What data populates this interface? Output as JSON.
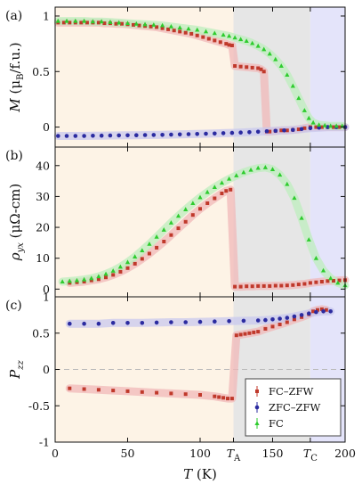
{
  "figure": {
    "panel_labels": [
      "(a)",
      "(b)",
      "(c)"
    ],
    "x_axis_label": "T (K)",
    "x_tick_labels": [
      "0",
      "50",
      "100",
      "T_A",
      "150",
      "T_C",
      "200"
    ],
    "special_x": [
      {
        "name": "T_A",
        "x": 123
      },
      {
        "name": "T_C",
        "x": 176
      }
    ],
    "region_colors": {
      "low": "#fdf3e6",
      "middle": "#e6e6e6",
      "high": "#e4e4fa"
    },
    "series_styles": [
      {
        "key": "fczfw",
        "legend_label": "FC–ZFW",
        "color": "#c0392b",
        "band": "#f0b8b8",
        "marker": "square"
      },
      {
        "key": "zfczfw",
        "legend_label": "ZFC–ZFW",
        "color": "#2b2ba0",
        "band": "#c8c8ee",
        "marker": "circle"
      },
      {
        "key": "fc",
        "legend_label": "FC",
        "color": "#2ecc2e",
        "band": "#bdeebd",
        "marker": "triangle"
      }
    ]
  },
  "chart_data": [
    {
      "type": "scatter",
      "panel": "(a)",
      "ylabel": "M (μB/f.u.)",
      "xlim": [
        0,
        200
      ],
      "ylim": [
        -0.18,
        1.08
      ],
      "yticks": [
        0,
        0.5,
        1
      ],
      "ytick_labels": [
        "0",
        "0.5",
        "1"
      ],
      "series": [
        {
          "key": "fczfw",
          "x": [
            2,
            6,
            10,
            14,
            18,
            22,
            26,
            30,
            34,
            38,
            42,
            46,
            50,
            54,
            58,
            62,
            66,
            70,
            74,
            78,
            82,
            86,
            90,
            94,
            98,
            102,
            106,
            110,
            114,
            118,
            120,
            122,
            124,
            128,
            132,
            136,
            140,
            142,
            144,
            146,
            148,
            152,
            156,
            160,
            164,
            168,
            172,
            176,
            180,
            184,
            188,
            192,
            196,
            200
          ],
          "y": [
            0.94,
            0.94,
            0.94,
            0.94,
            0.94,
            0.94,
            0.94,
            0.94,
            0.935,
            0.935,
            0.93,
            0.93,
            0.925,
            0.92,
            0.915,
            0.91,
            0.905,
            0.9,
            0.89,
            0.88,
            0.87,
            0.86,
            0.85,
            0.84,
            0.825,
            0.81,
            0.795,
            0.78,
            0.765,
            0.75,
            0.74,
            0.735,
            0.55,
            0.545,
            0.54,
            0.535,
            0.53,
            0.52,
            0.5,
            -0.04,
            -0.04,
            -0.035,
            -0.03,
            -0.03,
            -0.025,
            -0.02,
            -0.01,
            0.0,
            0.0,
            0.0,
            0.0,
            0.0,
            0.0,
            0.0
          ]
        },
        {
          "key": "zfczfw",
          "x": [
            2,
            8,
            14,
            20,
            26,
            32,
            38,
            44,
            50,
            56,
            62,
            68,
            74,
            80,
            86,
            92,
            98,
            104,
            110,
            116,
            122,
            128,
            134,
            140,
            146,
            152,
            158,
            164,
            170,
            176,
            182,
            188,
            194,
            200
          ],
          "y": [
            -0.08,
            -0.08,
            -0.08,
            -0.08,
            -0.078,
            -0.077,
            -0.076,
            -0.075,
            -0.074,
            -0.073,
            -0.072,
            -0.071,
            -0.07,
            -0.068,
            -0.066,
            -0.064,
            -0.062,
            -0.06,
            -0.058,
            -0.055,
            -0.052,
            -0.049,
            -0.046,
            -0.042,
            -0.038,
            -0.034,
            -0.03,
            -0.025,
            -0.018,
            -0.01,
            -0.005,
            0.0,
            0.0,
            0.0
          ]
        },
        {
          "key": "fc",
          "x": [
            2,
            8,
            14,
            20,
            26,
            32,
            38,
            44,
            50,
            56,
            62,
            68,
            74,
            80,
            86,
            92,
            98,
            104,
            110,
            116,
            120,
            124,
            128,
            132,
            136,
            140,
            144,
            148,
            152,
            156,
            160,
            164,
            168,
            172,
            175,
            178,
            182,
            186,
            190,
            194,
            198
          ],
          "y": [
            0.955,
            0.955,
            0.955,
            0.955,
            0.95,
            0.95,
            0.945,
            0.94,
            0.935,
            0.93,
            0.925,
            0.92,
            0.915,
            0.905,
            0.895,
            0.885,
            0.875,
            0.86,
            0.845,
            0.83,
            0.82,
            0.805,
            0.79,
            0.775,
            0.755,
            0.73,
            0.7,
            0.66,
            0.61,
            0.55,
            0.47,
            0.37,
            0.26,
            0.15,
            0.08,
            0.04,
            0.02,
            0.015,
            0.01,
            0.01,
            0.01
          ]
        }
      ]
    },
    {
      "type": "scatter",
      "panel": "(b)",
      "ylabel": "ρyx (μΩ-cm)",
      "xlim": [
        0,
        200
      ],
      "ylim": [
        -2.5,
        46
      ],
      "yticks": [
        0,
        10,
        20,
        30,
        40
      ],
      "ytick_labels": [
        "0",
        "10",
        "20",
        "30",
        "40"
      ],
      "series": [
        {
          "key": "fczfw",
          "x": [
            10,
            15,
            20,
            25,
            30,
            35,
            40,
            45,
            50,
            55,
            60,
            65,
            70,
            75,
            80,
            85,
            90,
            95,
            100,
            105,
            110,
            115,
            118,
            121,
            124,
            128,
            132,
            136,
            140,
            144,
            148,
            152,
            156,
            160,
            164,
            168,
            172,
            176,
            180,
            184,
            188,
            192,
            196,
            200
          ],
          "y": [
            2,
            2.2,
            2.4,
            2.8,
            3.2,
            3.8,
            4.6,
            5.6,
            6.8,
            8.2,
            9.8,
            11.5,
            13.4,
            15.4,
            17.5,
            19.7,
            21.8,
            24,
            26,
            27.8,
            29.4,
            31,
            31.8,
            32.2,
            0.8,
            0.8,
            0.9,
            0.9,
            1,
            1,
            1,
            1.1,
            1.1,
            1.2,
            1.3,
            1.5,
            1.7,
            2,
            2.2,
            2.4,
            2.6,
            2.7,
            2.8,
            2.9
          ]
        },
        {
          "key": "fc",
          "x": [
            5,
            10,
            15,
            20,
            25,
            30,
            35,
            40,
            45,
            50,
            55,
            60,
            65,
            70,
            75,
            80,
            85,
            90,
            95,
            100,
            105,
            110,
            115,
            120,
            125,
            130,
            135,
            140,
            145,
            150,
            155,
            160,
            165,
            170,
            175,
            180,
            185,
            190,
            195,
            200
          ],
          "y": [
            2.4,
            2.6,
            2.8,
            3.1,
            3.5,
            4.1,
            4.9,
            5.9,
            7.2,
            8.7,
            10.5,
            12.5,
            14.6,
            16.9,
            19.2,
            21.5,
            23.7,
            25.8,
            27.8,
            29.7,
            31.4,
            33,
            34.4,
            35.7,
            36.8,
            37.8,
            38.6,
            39.2,
            39.4,
            38.8,
            37,
            34,
            29.5,
            23,
            16,
            10,
            6,
            3.5,
            2,
            1.2
          ]
        }
      ]
    },
    {
      "type": "scatter",
      "panel": "(c)",
      "ylabel": "Pzz",
      "xlim": [
        0,
        200
      ],
      "ylim": [
        -1,
        1
      ],
      "yticks": [
        -1,
        -0.5,
        0,
        0.5,
        1
      ],
      "ytick_labels": [
        "-1",
        "-0.5",
        "0",
        "0.5",
        "1"
      ],
      "reference_line_y": 0,
      "series": [
        {
          "key": "fczfw",
          "x": [
            10,
            20,
            30,
            40,
            50,
            60,
            70,
            80,
            90,
            100,
            110,
            113,
            116,
            119,
            122,
            125,
            128,
            131,
            134,
            137,
            140,
            145,
            150,
            155,
            160,
            165,
            170,
            175,
            178,
            181,
            184,
            187
          ],
          "y": [
            -0.26,
            -0.27,
            -0.28,
            -0.29,
            -0.3,
            -0.31,
            -0.32,
            -0.33,
            -0.34,
            -0.35,
            -0.37,
            -0.38,
            -0.39,
            -0.4,
            -0.4,
            0.47,
            0.48,
            0.49,
            0.5,
            0.51,
            0.52,
            0.56,
            0.59,
            0.62,
            0.65,
            0.69,
            0.72,
            0.76,
            0.8,
            0.82,
            0.83,
            0.82
          ]
        },
        {
          "key": "zfczfw",
          "x": [
            10,
            20,
            30,
            40,
            50,
            60,
            70,
            80,
            90,
            100,
            110,
            120,
            130,
            140,
            145,
            150,
            155,
            160,
            165,
            170,
            175,
            180,
            185,
            190
          ],
          "y": [
            0.63,
            0.63,
            0.63,
            0.64,
            0.64,
            0.64,
            0.645,
            0.65,
            0.65,
            0.655,
            0.66,
            0.665,
            0.67,
            0.675,
            0.68,
            0.69,
            0.7,
            0.71,
            0.73,
            0.75,
            0.77,
            0.79,
            0.8,
            0.8
          ]
        }
      ]
    }
  ]
}
